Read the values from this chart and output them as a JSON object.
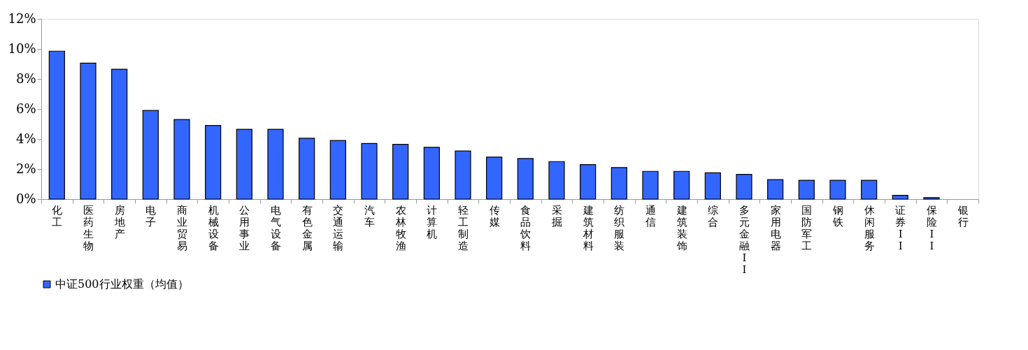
{
  "chart_data": {
    "type": "bar",
    "categories": [
      "化工",
      "医药生物",
      "房地产",
      "电子",
      "商业贸易",
      "机械设备",
      "公用事业",
      "电气设备",
      "有色金属",
      "交通运输",
      "汽车",
      "农林牧渔",
      "计算机",
      "轻工制造",
      "传媒",
      "食品饮料",
      "采掘",
      "建筑材料",
      "纺织服装",
      "通信",
      "建筑装饰",
      "综合",
      "多元金融II",
      "家用电器",
      "国防军工",
      "钢铁",
      "休闲服务",
      "证券II",
      "保险II",
      "银行"
    ],
    "series": [
      {
        "name": "中证500行业权重（均值）",
        "color": "#3366ff",
        "values": [
          9.85,
          9.05,
          8.65,
          5.9,
          5.3,
          4.9,
          4.65,
          4.65,
          4.05,
          3.9,
          3.7,
          3.65,
          3.45,
          3.2,
          2.8,
          2.7,
          2.5,
          2.3,
          2.1,
          1.85,
          1.85,
          1.75,
          1.65,
          1.3,
          1.25,
          1.25,
          1.25,
          0.25,
          0.1,
          0
        ]
      }
    ],
    "ylim": [
      0,
      12
    ],
    "yticks": [
      {
        "value": 0,
        "label": "0%"
      },
      {
        "value": 2,
        "label": "2%"
      },
      {
        "value": 4,
        "label": "4%"
      },
      {
        "value": 6,
        "label": "6%"
      },
      {
        "value": 8,
        "label": "8%"
      },
      {
        "value": 10,
        "label": "10%"
      },
      {
        "value": 12,
        "label": "12%"
      }
    ],
    "grid": false,
    "legend": "bottom"
  }
}
